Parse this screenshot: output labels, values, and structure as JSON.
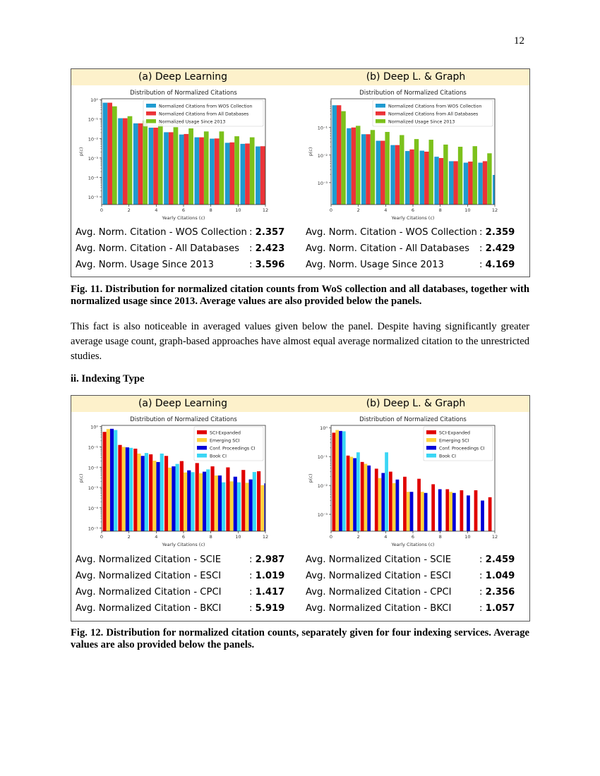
{
  "page_number": "12",
  "fig11": {
    "panel_labels": [
      "(a) Deep Learning",
      "(b) Deep L. & Graph"
    ],
    "stats": [
      [
        {
          "label": "Avg. Norm. Citation - WOS Collection",
          "value": "2.357"
        },
        {
          "label": "Avg. Norm. Citation - All Databases",
          "value": "2.423"
        },
        {
          "label": "Avg. Norm. Usage Since 2013",
          "value": "3.596"
        }
      ],
      [
        {
          "label": "Avg. Norm. Citation - WOS Collection",
          "value": "2.359"
        },
        {
          "label": "Avg. Norm. Citation - All Databases",
          "value": "2.429"
        },
        {
          "label": "Avg. Norm. Usage Since 2013",
          "value": "4.169"
        }
      ]
    ],
    "caption": "Fig. 11. Distribution for normalized citation counts from WoS collection and all databases, together with normalized usage since 2013. Average values are also provided below the panels."
  },
  "paragraph": "This fact is also noticeable in averaged values given below the panel. Despite having significantly greater average usage count, graph-based approaches have almost equal average normalized citation to the unrestricted studies.",
  "section_heading": "ii. Indexing Type",
  "fig12": {
    "panel_labels": [
      "(a) Deep Learning",
      "(b) Deep L. & Graph"
    ],
    "stats": [
      [
        {
          "label": "Avg. Normalized Citation - SCIE",
          "value": "2.987"
        },
        {
          "label": "Avg. Normalized Citation - ESCI",
          "value": "1.019"
        },
        {
          "label": "Avg. Normalized Citation - CPCI",
          "value": "1.417"
        },
        {
          "label": "Avg. Normalized Citation - BKCI",
          "value": "5.919"
        }
      ],
      [
        {
          "label": "Avg. Normalized Citation - SCIE",
          "value": "2.459"
        },
        {
          "label": "Avg. Normalized Citation - ESCI",
          "value": "1.049"
        },
        {
          "label": "Avg. Normalized Citation - CPCI",
          "value": "2.356"
        },
        {
          "label": "Avg. Normalized Citation - BKCI",
          "value": "1.057"
        }
      ]
    ],
    "caption": "Fig. 12. Distribution for normalized citation counts, separately given for four indexing services. Average values are also provided below the panels."
  },
  "chart_data": [
    {
      "type": "bar",
      "title": "Distribution of Normalized Citations",
      "xlabel": "Yearly Citations (c)",
      "ylabel": "p(c)",
      "yscale": "log",
      "xlim": [
        0,
        12
      ],
      "ylim": [
        4e-06,
        1.1
      ],
      "xticks": [
        0,
        2,
        4,
        6,
        8,
        10,
        12
      ],
      "xtick_labels": [
        "0",
        "2",
        "4",
        "6",
        "8",
        "10",
        "12"
      ],
      "yticks": [
        1,
        0.1,
        0.01,
        0.001,
        0.0001,
        1e-05
      ],
      "ytick_labels": [
        "10⁰",
        "10⁻¹",
        "10⁻²",
        "10⁻³",
        "10⁻⁴",
        "10⁻⁵"
      ],
      "legend": "top-right",
      "grid": false,
      "bin_starts": [
        0,
        1.12,
        2.24,
        3.36,
        4.48,
        5.6,
        6.72,
        7.84,
        8.96,
        10.08,
        11.2
      ],
      "series": [
        {
          "name": "Normalized Citations from WOS Collection",
          "color": "#1e9ad0",
          "values": [
            0.69,
            0.11,
            0.06,
            0.036,
            0.021,
            0.016,
            0.0115,
            0.0098,
            0.006,
            0.0053,
            0.0039
          ]
        },
        {
          "name": "Normalized Citations from All Databases",
          "color": "#ec3338",
          "values": [
            0.69,
            0.11,
            0.06,
            0.036,
            0.021,
            0.017,
            0.0115,
            0.01,
            0.0063,
            0.0055,
            0.004
          ]
        },
        {
          "name": "Normalized Usage Since 2013",
          "color": "#7cc11b",
          "values": [
            0.45,
            0.14,
            0.085,
            0.055,
            0.038,
            0.033,
            0.023,
            0.023,
            0.013,
            0.0115,
            0.008
          ]
        }
      ]
    },
    {
      "type": "bar",
      "title": "Distribution of Normalized Citations",
      "xlabel": "Yearly Citations (c)",
      "ylabel": "p(c)",
      "yscale": "log",
      "xlim": [
        0,
        12
      ],
      "ylim": [
        0.00016,
        1.1
      ],
      "xticks": [
        0,
        2,
        4,
        6,
        8,
        10,
        12
      ],
      "xtick_labels": [
        "0",
        "2",
        "4",
        "6",
        "8",
        "10",
        "12"
      ],
      "yticks": [
        0.1,
        0.01,
        0.001
      ],
      "ytick_labels": [
        "10⁻¹",
        "10⁻²",
        "10⁻³"
      ],
      "legend": "top-right",
      "grid": false,
      "bin_starts": [
        0,
        1.07,
        2.14,
        3.21,
        4.28,
        5.35,
        6.42,
        7.49,
        8.56,
        9.63,
        10.7,
        11.77
      ],
      "series": [
        {
          "name": "Normalized Citations from WOS Collection",
          "color": "#1e9ad0",
          "values": [
            0.64,
            0.094,
            0.057,
            0.033,
            0.023,
            0.014,
            0.0144,
            0.0087,
            0.006,
            0.0053,
            0.0053,
            0.0019
          ]
        },
        {
          "name": "Normalized Citations from All Databases",
          "color": "#ec3338",
          "values": [
            0.64,
            0.1,
            0.057,
            0.033,
            0.023,
            0.016,
            0.0133,
            0.0078,
            0.006,
            0.0058,
            0.006,
            0.0027
          ]
        },
        {
          "name": "Normalized Usage Since 2013",
          "color": "#7cc11b",
          "values": [
            0.39,
            0.115,
            0.081,
            0.069,
            0.053,
            0.038,
            0.036,
            0.024,
            0.02,
            0.021,
            0.0116,
            null
          ]
        }
      ]
    },
    {
      "type": "bar",
      "title": "Distribution of Normalized Citations",
      "xlabel": "Yearly Citations (c)",
      "ylabel": "p(c)",
      "yscale": "log",
      "xlim": [
        0,
        12
      ],
      "ylim": [
        7e-06,
        1.15
      ],
      "xticks": [
        0,
        2,
        4,
        6,
        8,
        10,
        12
      ],
      "xtick_labels": [
        "0",
        "2",
        "4",
        "6",
        "8",
        "10",
        "12"
      ],
      "yticks": [
        1,
        0.1,
        0.01,
        0.001,
        0.0001,
        1e-05
      ],
      "ytick_labels": [
        "10⁰",
        "10⁻¹",
        "10⁻²",
        "10⁻³",
        "10⁻⁴",
        "10⁻⁵"
      ],
      "legend": "top-right",
      "grid": false,
      "bin_starts": [
        0,
        1.13,
        2.26,
        3.39,
        4.52,
        5.65,
        6.78,
        7.91,
        9.04,
        10.17,
        11.3
      ],
      "series": [
        {
          "name": "SCI-Expanded",
          "color": "#e00000",
          "values": [
            0.55,
            0.125,
            0.082,
            0.043,
            0.036,
            0.02,
            0.016,
            0.011,
            0.0098,
            0.0073,
            0.0063
          ]
        },
        {
          "name": "Emerging SCI",
          "color": "#ffd23c",
          "values": [
            0.76,
            0.1,
            0.047,
            0.021,
            0.0095,
            0.0055,
            0.005,
            0.0039,
            0.002,
            0.0017,
            0.0013
          ]
        },
        {
          "name": "Conf. Proceedings CI",
          "color": "#0000d8",
          "values": [
            0.78,
            0.095,
            0.036,
            0.018,
            0.011,
            0.007,
            0.006,
            0.0039,
            0.0034,
            0.0025,
            0.0016
          ]
        },
        {
          "name": "Book CI",
          "color": "#3ad6f5",
          "values": [
            0.68,
            0.09,
            0.05,
            0.047,
            0.0145,
            0.0057,
            0.0078,
            0.0018,
            0.0018,
            0.0058,
            null
          ]
        }
      ]
    },
    {
      "type": "bar",
      "title": "Distribution of Normalized Citations",
      "xlabel": "Yearly Citations (c)",
      "ylabel": "p(c)",
      "yscale": "log",
      "xlim": [
        0,
        12
      ],
      "ylim": [
        0.00026,
        1.2
      ],
      "xticks": [
        0,
        2,
        4,
        6,
        8,
        10,
        12
      ],
      "xtick_labels": [
        "0",
        "2",
        "4",
        "6",
        "8",
        "10",
        "12"
      ],
      "yticks": [
        1,
        0.1,
        0.01,
        0.001
      ],
      "ytick_labels": [
        "10⁰",
        "10⁻¹",
        "10⁻²",
        "10⁻³"
      ],
      "legend": "top-right",
      "grid": false,
      "bin_starts": [
        0,
        1.04,
        2.08,
        3.12,
        4.16,
        5.2,
        6.24,
        7.28,
        8.32,
        9.36,
        10.4,
        11.44
      ],
      "series": [
        {
          "name": "SCI-Expanded",
          "color": "#e00000",
          "values": [
            0.67,
            0.108,
            0.065,
            0.038,
            0.03,
            0.02,
            0.017,
            0.011,
            0.0074,
            0.0068,
            0.0068,
            0.0039
          ]
        },
        {
          "name": "Emerging SCI",
          "color": "#ffd23c",
          "values": [
            0.83,
            0.098,
            0.056,
            0.018,
            0.012,
            0.006,
            0.006,
            null,
            0.006,
            null,
            null,
            null
          ]
        },
        {
          "name": "Conf. Proceedings CI",
          "color": "#0000d8",
          "values": [
            0.77,
            0.088,
            0.049,
            0.027,
            0.016,
            0.006,
            0.0055,
            0.0074,
            0.0055,
            0.0045,
            0.003,
            0.0018
          ]
        },
        {
          "name": "Book CI",
          "color": "#3ad6f5",
          "values": [
            0.75,
            0.14,
            null,
            0.14,
            null,
            null,
            null,
            null,
            null,
            null,
            null,
            null
          ]
        }
      ]
    }
  ]
}
